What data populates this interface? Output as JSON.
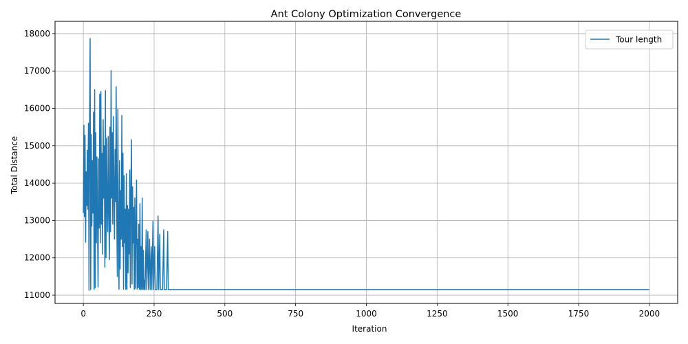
{
  "chart_data": {
    "type": "line",
    "title": "Ant Colony Optimization Convergence",
    "xlabel": "Iteration",
    "ylabel": "Total Distance",
    "xlim": [
      -100,
      2100
    ],
    "ylim": [
      10780,
      18330
    ],
    "xticks": [
      0,
      250,
      500,
      750,
      1000,
      1250,
      1500,
      1750,
      2000
    ],
    "xtick_labels": [
      "0",
      "250",
      "500",
      "750",
      "1000",
      "1250",
      "1500",
      "1750",
      "2000"
    ],
    "yticks": [
      11000,
      12000,
      13000,
      14000,
      15000,
      16000,
      17000,
      18000
    ],
    "ytick_labels": [
      "11000",
      "12000",
      "13000",
      "14000",
      "15000",
      "16000",
      "17000",
      "18000"
    ],
    "grid": true,
    "legend": {
      "position": "top-right",
      "entries": [
        "Tour length"
      ]
    },
    "series": [
      {
        "name": "Tour length",
        "color": "#1f77b4",
        "points": [
          [
            0,
            13200
          ],
          [
            2,
            15550
          ],
          [
            4,
            13100
          ],
          [
            6,
            15280
          ],
          [
            8,
            12420
          ],
          [
            10,
            14300
          ],
          [
            12,
            13400
          ],
          [
            14,
            14880
          ],
          [
            16,
            13300
          ],
          [
            18,
            15600
          ],
          [
            20,
            11130
          ],
          [
            22,
            15500
          ],
          [
            24,
            17870
          ],
          [
            26,
            11150
          ],
          [
            28,
            15300
          ],
          [
            30,
            12850
          ],
          [
            32,
            14600
          ],
          [
            34,
            13200
          ],
          [
            36,
            15900
          ],
          [
            38,
            11160
          ],
          [
            40,
            16500
          ],
          [
            42,
            11200
          ],
          [
            44,
            15350
          ],
          [
            46,
            12400
          ],
          [
            48,
            14700
          ],
          [
            50,
            13000
          ],
          [
            52,
            11220
          ],
          [
            54,
            14650
          ],
          [
            56,
            12800
          ],
          [
            58,
            16380
          ],
          [
            60,
            12400
          ],
          [
            62,
            16450
          ],
          [
            64,
            12900
          ],
          [
            66,
            14800
          ],
          [
            68,
            12100
          ],
          [
            70,
            15700
          ],
          [
            72,
            13600
          ],
          [
            74,
            15000
          ],
          [
            76,
            11750
          ],
          [
            78,
            16480
          ],
          [
            80,
            12000
          ],
          [
            82,
            15200
          ],
          [
            84,
            13400
          ],
          [
            86,
            12700
          ],
          [
            88,
            15250
          ],
          [
            90,
            13200
          ],
          [
            92,
            11950
          ],
          [
            94,
            15500
          ],
          [
            96,
            12700
          ],
          [
            98,
            17010
          ],
          [
            100,
            13600
          ],
          [
            102,
            15350
          ],
          [
            104,
            12900
          ],
          [
            106,
            15780
          ],
          [
            108,
            13800
          ],
          [
            110,
            12500
          ],
          [
            112,
            14900
          ],
          [
            114,
            13500
          ],
          [
            116,
            16580
          ],
          [
            118,
            13200
          ],
          [
            120,
            11500
          ],
          [
            122,
            15980
          ],
          [
            124,
            12600
          ],
          [
            126,
            11160
          ],
          [
            128,
            14600
          ],
          [
            130,
            11700
          ],
          [
            132,
            13800
          ],
          [
            134,
            12500
          ],
          [
            136,
            15810
          ],
          [
            138,
            12300
          ],
          [
            140,
            14800
          ],
          [
            142,
            11160
          ],
          [
            144,
            14200
          ],
          [
            146,
            12400
          ],
          [
            148,
            13300
          ],
          [
            150,
            11160
          ],
          [
            152,
            14250
          ],
          [
            154,
            11160
          ],
          [
            156,
            13400
          ],
          [
            158,
            11600
          ],
          [
            160,
            13300
          ],
          [
            162,
            12100
          ],
          [
            164,
            14350
          ],
          [
            166,
            11200
          ],
          [
            168,
            13800
          ],
          [
            170,
            15160
          ],
          [
            172,
            11300
          ],
          [
            174,
            13900
          ],
          [
            176,
            12400
          ],
          [
            178,
            13350
          ],
          [
            180,
            11160
          ],
          [
            182,
            13600
          ],
          [
            184,
            11180
          ],
          [
            186,
            12800
          ],
          [
            188,
            14080
          ],
          [
            190,
            11160
          ],
          [
            192,
            12500
          ],
          [
            194,
            11200
          ],
          [
            196,
            12900
          ],
          [
            198,
            11160
          ],
          [
            200,
            13450
          ],
          [
            202,
            11150
          ],
          [
            204,
            12300
          ],
          [
            206,
            11160
          ],
          [
            208,
            13600
          ],
          [
            210,
            11150
          ],
          [
            212,
            12200
          ],
          [
            214,
            11150
          ],
          [
            216,
            11400
          ],
          [
            218,
            11150
          ],
          [
            222,
            12750
          ],
          [
            224,
            11150
          ],
          [
            228,
            12700
          ],
          [
            230,
            11150
          ],
          [
            234,
            12500
          ],
          [
            236,
            11150
          ],
          [
            240,
            12300
          ],
          [
            242,
            11150
          ],
          [
            246,
            12980
          ],
          [
            248,
            11150
          ],
          [
            252,
            12300
          ],
          [
            254,
            11150
          ],
          [
            256,
            11150
          ],
          [
            260,
            11150
          ],
          [
            264,
            13120
          ],
          [
            266,
            11150
          ],
          [
            270,
            12630
          ],
          [
            272,
            11150
          ],
          [
            280,
            11150
          ],
          [
            284,
            12750
          ],
          [
            286,
            11150
          ],
          [
            294,
            11150
          ],
          [
            298,
            12700
          ],
          [
            300,
            11150
          ],
          [
            2000,
            11150
          ]
        ]
      }
    ]
  }
}
